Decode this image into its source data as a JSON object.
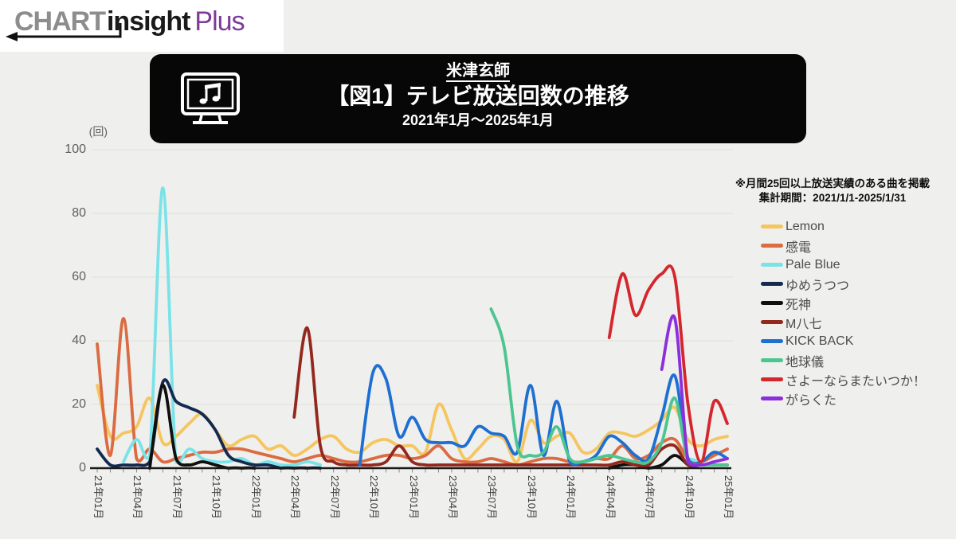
{
  "logo": {
    "chart": "CHART",
    "insight": "insight",
    "plus": "Plus"
  },
  "header": {
    "artist": "米津玄師",
    "title": "【図1】テレビ放送回数の推移",
    "period": "2021年1月～2025年1月"
  },
  "note": {
    "line1": "※月間25回以上放送実績のある曲を掲載",
    "line2": "集計期間：2021/1/1-2025/1/31"
  },
  "chart_data": {
    "type": "line",
    "title": "【図1】テレビ放送回数の推移",
    "subtitle": "2021年1月～2025年1月",
    "unit_label": "(回)",
    "ylim": [
      0,
      100
    ],
    "yticks": [
      0,
      20,
      40,
      60,
      80,
      100
    ],
    "grid": "horizontal",
    "legend_position": "right",
    "x_interval": "monthly",
    "x_range": [
      "2021-01",
      "2025-01"
    ],
    "x_tick_labels": [
      "21年01月",
      "21年04月",
      "21年07月",
      "21年10月",
      "22年01月",
      "22年04月",
      "22年07月",
      "22年10月",
      "23年01月",
      "23年04月",
      "23年07月",
      "23年10月",
      "24年01月",
      "24年04月",
      "24年07月",
      "24年10月",
      "25年01月"
    ],
    "series": [
      {
        "name": "Lemon",
        "color": "#F5C55F",
        "values": [
          26,
          10,
          11,
          13,
          22,
          8,
          10,
          14,
          17,
          12,
          7,
          9,
          10,
          6,
          7,
          4,
          6,
          9,
          10,
          6,
          5,
          8,
          9,
          7,
          7,
          5,
          20,
          12,
          3,
          6,
          10,
          9,
          2,
          15,
          8,
          10,
          11,
          5,
          6,
          11,
          11,
          10,
          12,
          15,
          19,
          9,
          7,
          9,
          10
        ]
      },
      {
        "name": "感電",
        "color": "#DB6B41",
        "values": [
          39,
          4,
          47,
          3,
          6,
          2,
          3,
          4,
          5,
          5,
          6,
          6,
          5,
          4,
          3,
          2,
          3,
          4,
          3,
          2,
          2,
          3,
          4,
          4,
          3,
          4,
          7,
          3,
          2,
          2,
          3,
          2,
          1,
          2,
          3,
          3,
          2,
          2,
          3,
          3,
          7,
          3,
          4,
          8,
          9,
          3,
          2,
          4,
          6
        ]
      },
      {
        "name": "Pale Blue",
        "color": "#7BE3E8",
        "values": [
          null,
          null,
          2,
          9,
          4,
          88,
          2,
          6,
          3,
          2,
          2,
          3,
          1,
          2,
          1,
          1,
          2,
          1,
          null,
          null,
          null,
          null,
          null,
          null,
          null,
          null,
          null,
          null,
          null,
          null,
          null,
          null,
          null,
          null,
          null,
          null,
          null,
          null,
          null,
          null,
          null,
          null,
          null,
          null,
          null,
          3,
          2,
          null,
          null
        ]
      },
      {
        "name": "ゆめうつつ",
        "color": "#14294F",
        "values": [
          6,
          1,
          1,
          1,
          2,
          27,
          21,
          19,
          17,
          12,
          4,
          2,
          1,
          1,
          0,
          0,
          0,
          0,
          null,
          null,
          null,
          null,
          null,
          null,
          null,
          null,
          null,
          null,
          null,
          null,
          null,
          null,
          null,
          null,
          null,
          null,
          null,
          null,
          null,
          null,
          null,
          null,
          null,
          null,
          null,
          null,
          null,
          null,
          null
        ]
      },
      {
        "name": "死神",
        "color": "#0F0F0F",
        "values": [
          null,
          null,
          null,
          null,
          0,
          26,
          3,
          1,
          2,
          1,
          0,
          0,
          0,
          null,
          null,
          null,
          null,
          null,
          null,
          null,
          null,
          null,
          null,
          null,
          null,
          null,
          null,
          null,
          null,
          null,
          null,
          null,
          null,
          null,
          null,
          null,
          null,
          null,
          null,
          0,
          1,
          1,
          0,
          1,
          4,
          1,
          null,
          null,
          null
        ]
      },
      {
        "name": "M八七",
        "color": "#93281D",
        "values": [
          null,
          null,
          null,
          null,
          null,
          null,
          null,
          null,
          null,
          null,
          null,
          null,
          null,
          null,
          null,
          16,
          44,
          7,
          2,
          1,
          1,
          1,
          2,
          7,
          2,
          1,
          1,
          1,
          1,
          1,
          1,
          1,
          1,
          1,
          1,
          1,
          1,
          1,
          1,
          1,
          2,
          1,
          1,
          6,
          7,
          1,
          1,
          1,
          1
        ]
      },
      {
        "name": "KICK BACK",
        "color": "#1E6FD2",
        "values": [
          null,
          null,
          null,
          null,
          null,
          null,
          null,
          null,
          null,
          null,
          null,
          null,
          null,
          null,
          null,
          null,
          null,
          null,
          null,
          null,
          1,
          30,
          28,
          10,
          16,
          9,
          8,
          8,
          7,
          13,
          11,
          10,
          5,
          26,
          4,
          21,
          2,
          2,
          4,
          10,
          8,
          4,
          3,
          16,
          29,
          3,
          2,
          5,
          3
        ]
      },
      {
        "name": "地球儀",
        "color": "#4DC591",
        "values": [
          null,
          null,
          null,
          null,
          null,
          null,
          null,
          null,
          null,
          null,
          null,
          null,
          null,
          null,
          null,
          null,
          null,
          null,
          null,
          null,
          null,
          null,
          null,
          null,
          null,
          null,
          null,
          null,
          null,
          null,
          50,
          38,
          7,
          4,
          5,
          13,
          3,
          2,
          3,
          4,
          3,
          2,
          2,
          8,
          22,
          2,
          1,
          1,
          1
        ]
      },
      {
        "name": "さよーならまたいつか！",
        "color": "#D5262D",
        "values": [
          null,
          null,
          null,
          null,
          null,
          null,
          null,
          null,
          null,
          null,
          null,
          null,
          null,
          null,
          null,
          null,
          null,
          null,
          null,
          null,
          null,
          null,
          null,
          null,
          null,
          null,
          null,
          null,
          null,
          null,
          null,
          null,
          null,
          null,
          null,
          null,
          null,
          null,
          null,
          41,
          61,
          48,
          56,
          61,
          60,
          20,
          2,
          21,
          14
        ]
      },
      {
        "name": "がらくた",
        "color": "#8B2FDC",
        "values": [
          null,
          null,
          null,
          null,
          null,
          null,
          null,
          null,
          null,
          null,
          null,
          null,
          null,
          null,
          null,
          null,
          null,
          null,
          null,
          null,
          null,
          null,
          null,
          null,
          null,
          null,
          null,
          null,
          null,
          null,
          null,
          null,
          null,
          null,
          null,
          null,
          null,
          null,
          null,
          null,
          null,
          null,
          null,
          31,
          47,
          2,
          1,
          2,
          3
        ]
      }
    ]
  }
}
